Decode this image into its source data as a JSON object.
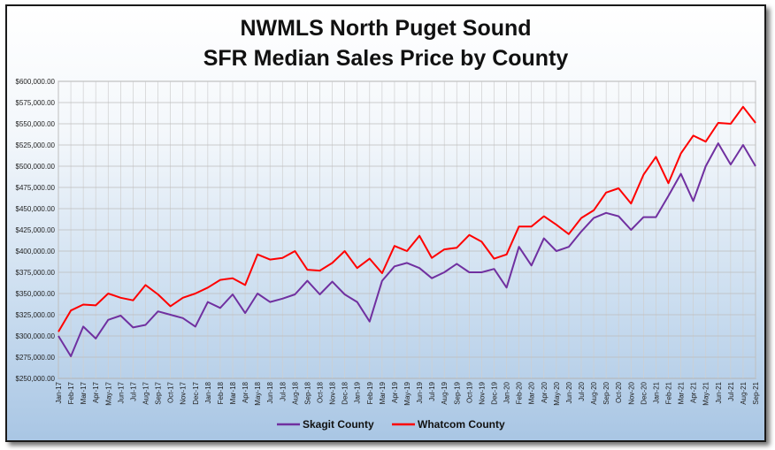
{
  "chart_data": {
    "type": "line",
    "title": "NWMLS North Puget Sound",
    "subtitle": "SFR Median Sales Price by County",
    "xlabel": "",
    "ylabel": "",
    "ylim": [
      250000,
      600000
    ],
    "ytick_step": 25000,
    "yticks": [
      "$250,000.00",
      "$275,000.00",
      "$300,000.00",
      "$325,000.00",
      "$350,000.00",
      "$375,000.00",
      "$400,000.00",
      "$425,000.00",
      "$450,000.00",
      "$475,000.00",
      "$500,000.00",
      "$525,000.00",
      "$550,000.00",
      "$575,000.00",
      "$600,000.00"
    ],
    "grid": true,
    "legend": "bottom",
    "categories": [
      "Jan-17",
      "Feb-17",
      "Mar-17",
      "Apr-17",
      "May-17",
      "Jun-17",
      "Jul-17",
      "Aug-17",
      "Sep-17",
      "Oct-17",
      "Nov-17",
      "Dec-17",
      "Jan-18",
      "Feb-18",
      "Mar-18",
      "Apr-18",
      "May-18",
      "Jun-18",
      "Jul-18",
      "Aug-18",
      "Sep-18",
      "Oct-18",
      "Nov-18",
      "Dec-18",
      "Jan-19",
      "Feb-19",
      "Mar-19",
      "Apr-19",
      "May-19",
      "Jun-19",
      "Jul-19",
      "Aug-19",
      "Sep-19",
      "Oct-19",
      "Nov-19",
      "Dec-19",
      "Jan-20",
      "Feb-20",
      "Mar-20",
      "Apr-20",
      "May-20",
      "Jun-20",
      "Jul-20",
      "Aug-20",
      "Sep-20",
      "Oct-20",
      "Nov-20",
      "Dec-20",
      "Jan-21",
      "Feb-21",
      "Mar-21",
      "Apr-21",
      "May-21",
      "Jun-21",
      "Jul-21",
      "Aug-21",
      "Sep-21"
    ],
    "series": [
      {
        "name": "Skagit County",
        "color": "#7030a0",
        "values": [
          300000,
          276000,
          311000,
          297000,
          319000,
          324000,
          310000,
          313000,
          329000,
          325000,
          321000,
          311000,
          340000,
          333000,
          349000,
          327000,
          350000,
          340000,
          344000,
          349000,
          365000,
          349000,
          364000,
          349000,
          340000,
          317000,
          365000,
          382000,
          386000,
          380000,
          368000,
          375000,
          385000,
          375000,
          375000,
          379000,
          357000,
          405000,
          383000,
          415000,
          400000,
          405000,
          423000,
          439000,
          445000,
          441000,
          425000,
          440000,
          440000,
          465000,
          491000,
          459000,
          500000,
          527000,
          502000,
          525000,
          500000
        ]
      },
      {
        "name": "Whatcom County",
        "color": "#ff0000",
        "values": [
          305000,
          330000,
          337000,
          336000,
          350000,
          345000,
          342000,
          360000,
          349000,
          335000,
          345000,
          350000,
          357000,
          366000,
          368000,
          360000,
          396000,
          390000,
          392000,
          400000,
          378000,
          377000,
          386000,
          400000,
          380000,
          391000,
          374000,
          406000,
          400000,
          418000,
          392000,
          402000,
          404000,
          419000,
          411000,
          391000,
          396000,
          429000,
          429000,
          441000,
          431000,
          420000,
          439000,
          448000,
          469000,
          474000,
          456000,
          490000,
          511000,
          480000,
          515000,
          536000,
          529000,
          551000,
          550000,
          570000,
          551000
        ]
      }
    ]
  }
}
